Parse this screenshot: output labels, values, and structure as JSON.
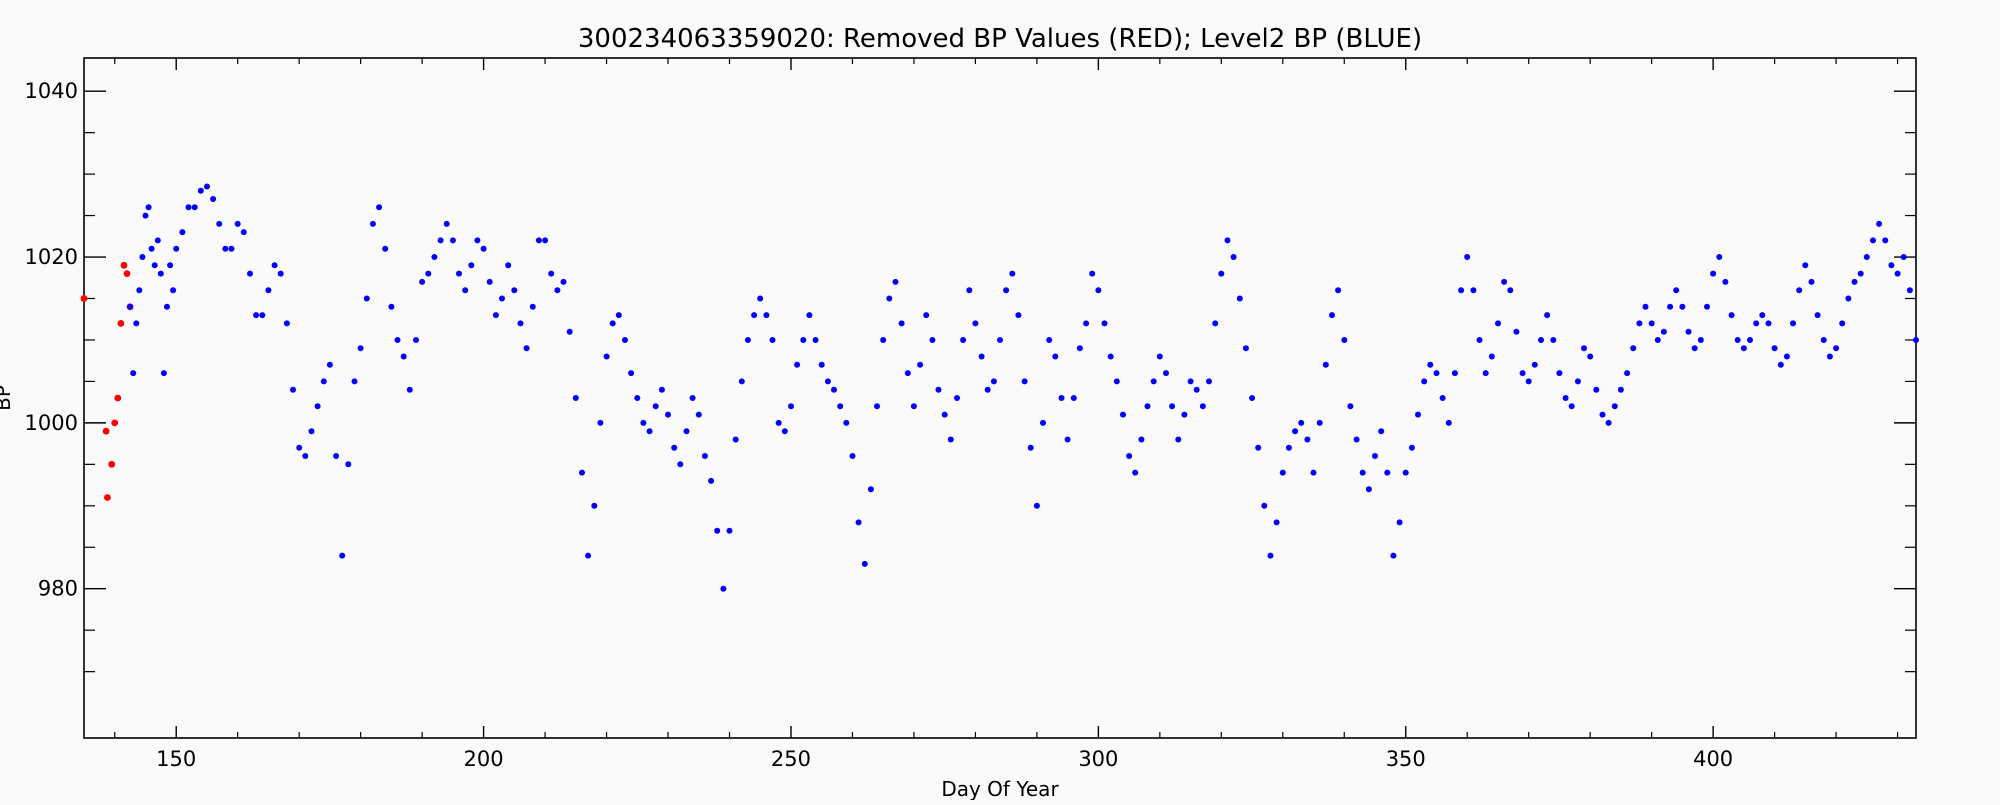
{
  "chart_data": {
    "type": "scatter",
    "title": "300234063359020: Removed BP Values (RED); Level2 BP (BLUE)",
    "xlabel": "Day Of Year",
    "ylabel": "BP",
    "xlim": [
      135,
      433
    ],
    "ylim": [
      962,
      1044
    ],
    "xticks": [
      150,
      200,
      250,
      300,
      350,
      400
    ],
    "yticks": [
      980,
      1000,
      1020,
      1040
    ],
    "grid": false,
    "legend": "none",
    "colors": {
      "removed": "#ff0000",
      "level2": "#0000ff"
    },
    "series": [
      {
        "key": "removed",
        "color": "#ff0000",
        "points": [
          [
            135,
            1015
          ],
          [
            138.6,
            999
          ],
          [
            138.8,
            991
          ],
          [
            139.5,
            995
          ],
          [
            140,
            1000
          ],
          [
            140.5,
            1003
          ],
          [
            141,
            1012
          ],
          [
            141.5,
            1019
          ],
          [
            142,
            1018
          ],
          [
            142.5,
            1014
          ]
        ]
      },
      {
        "key": "level2",
        "color": "#0000ff",
        "points": [
          [
            142.5,
            1014
          ],
          [
            143,
            1006
          ],
          [
            143.5,
            1012
          ],
          [
            144,
            1016
          ],
          [
            144.5,
            1020
          ],
          [
            145,
            1025
          ],
          [
            145.5,
            1026
          ],
          [
            146,
            1021
          ],
          [
            146.5,
            1019
          ],
          [
            147,
            1022
          ],
          [
            147.5,
            1018
          ],
          [
            148,
            1006
          ],
          [
            148.5,
            1014
          ],
          [
            149,
            1019
          ],
          [
            149.5,
            1016
          ],
          [
            150,
            1021
          ],
          [
            151,
            1023
          ],
          [
            152,
            1026
          ],
          [
            153,
            1026
          ],
          [
            154,
            1028
          ],
          [
            155,
            1028.5
          ],
          [
            156,
            1027
          ],
          [
            157,
            1024
          ],
          [
            158,
            1021
          ],
          [
            159,
            1021
          ],
          [
            160,
            1024
          ],
          [
            161,
            1023
          ],
          [
            162,
            1018
          ],
          [
            163,
            1013
          ],
          [
            164,
            1013
          ],
          [
            165,
            1016
          ],
          [
            166,
            1019
          ],
          [
            167,
            1018
          ],
          [
            168,
            1012
          ],
          [
            169,
            1004
          ],
          [
            170,
            997
          ],
          [
            171,
            996
          ],
          [
            172,
            999
          ],
          [
            173,
            1002
          ],
          [
            174,
            1005
          ],
          [
            175,
            1007
          ],
          [
            176,
            996
          ],
          [
            177,
            984
          ],
          [
            178,
            995
          ],
          [
            179,
            1005
          ],
          [
            180,
            1009
          ],
          [
            181,
            1015
          ],
          [
            182,
            1024
          ],
          [
            183,
            1026
          ],
          [
            184,
            1021
          ],
          [
            185,
            1014
          ],
          [
            186,
            1010
          ],
          [
            187,
            1008
          ],
          [
            188,
            1004
          ],
          [
            189,
            1010
          ],
          [
            190,
            1017
          ],
          [
            191,
            1018
          ],
          [
            192,
            1020
          ],
          [
            193,
            1022
          ],
          [
            194,
            1024
          ],
          [
            195,
            1022
          ],
          [
            196,
            1018
          ],
          [
            197,
            1016
          ],
          [
            198,
            1019
          ],
          [
            199,
            1022
          ],
          [
            200,
            1021
          ],
          [
            201,
            1017
          ],
          [
            202,
            1013
          ],
          [
            203,
            1015
          ],
          [
            204,
            1019
          ],
          [
            205,
            1016
          ],
          [
            206,
            1012
          ],
          [
            207,
            1009
          ],
          [
            208,
            1014
          ],
          [
            209,
            1022
          ],
          [
            210,
            1022
          ],
          [
            211,
            1018
          ],
          [
            212,
            1016
          ],
          [
            213,
            1017
          ],
          [
            214,
            1011
          ],
          [
            215,
            1003
          ],
          [
            216,
            994
          ],
          [
            217,
            984
          ],
          [
            218,
            990
          ],
          [
            219,
            1000
          ],
          [
            220,
            1008
          ],
          [
            221,
            1012
          ],
          [
            222,
            1013
          ],
          [
            223,
            1010
          ],
          [
            224,
            1006
          ],
          [
            225,
            1003
          ],
          [
            226,
            1000
          ],
          [
            227,
            999
          ],
          [
            228,
            1002
          ],
          [
            229,
            1004
          ],
          [
            230,
            1001
          ],
          [
            231,
            997
          ],
          [
            232,
            995
          ],
          [
            233,
            999
          ],
          [
            234,
            1003
          ],
          [
            235,
            1001
          ],
          [
            236,
            996
          ],
          [
            237,
            993
          ],
          [
            238,
            987
          ],
          [
            239,
            980
          ],
          [
            240,
            987
          ],
          [
            241,
            998
          ],
          [
            242,
            1005
          ],
          [
            243,
            1010
          ],
          [
            244,
            1013
          ],
          [
            245,
            1015
          ],
          [
            246,
            1013
          ],
          [
            247,
            1010
          ],
          [
            248,
            1000
          ],
          [
            249,
            999
          ],
          [
            250,
            1002
          ],
          [
            251,
            1007
          ],
          [
            252,
            1010
          ],
          [
            253,
            1013
          ],
          [
            254,
            1010
          ],
          [
            255,
            1007
          ],
          [
            256,
            1005
          ],
          [
            257,
            1004
          ],
          [
            258,
            1002
          ],
          [
            259,
            1000
          ],
          [
            260,
            996
          ],
          [
            261,
            988
          ],
          [
            262,
            983
          ],
          [
            263,
            992
          ],
          [
            264,
            1002
          ],
          [
            265,
            1010
          ],
          [
            266,
            1015
          ],
          [
            267,
            1017
          ],
          [
            268,
            1012
          ],
          [
            269,
            1006
          ],
          [
            270,
            1002
          ],
          [
            271,
            1007
          ],
          [
            272,
            1013
          ],
          [
            273,
            1010
          ],
          [
            274,
            1004
          ],
          [
            275,
            1001
          ],
          [
            276,
            998
          ],
          [
            277,
            1003
          ],
          [
            278,
            1010
          ],
          [
            279,
            1016
          ],
          [
            280,
            1012
          ],
          [
            281,
            1008
          ],
          [
            282,
            1004
          ],
          [
            283,
            1005
          ],
          [
            284,
            1010
          ],
          [
            285,
            1016
          ],
          [
            286,
            1018
          ],
          [
            287,
            1013
          ],
          [
            288,
            1005
          ],
          [
            289,
            997
          ],
          [
            290,
            990
          ],
          [
            291,
            1000
          ],
          [
            292,
            1010
          ],
          [
            293,
            1008
          ],
          [
            294,
            1003
          ],
          [
            295,
            998
          ],
          [
            296,
            1003
          ],
          [
            297,
            1009
          ],
          [
            298,
            1012
          ],
          [
            299,
            1018
          ],
          [
            300,
            1016
          ],
          [
            301,
            1012
          ],
          [
            302,
            1008
          ],
          [
            303,
            1005
          ],
          [
            304,
            1001
          ],
          [
            305,
            996
          ],
          [
            306,
            994
          ],
          [
            307,
            998
          ],
          [
            308,
            1002
          ],
          [
            309,
            1005
          ],
          [
            310,
            1008
          ],
          [
            311,
            1006
          ],
          [
            312,
            1002
          ],
          [
            313,
            998
          ],
          [
            314,
            1001
          ],
          [
            315,
            1005
          ],
          [
            316,
            1004
          ],
          [
            317,
            1002
          ],
          [
            318,
            1005
          ],
          [
            319,
            1012
          ],
          [
            320,
            1018
          ],
          [
            321,
            1022
          ],
          [
            322,
            1020
          ],
          [
            323,
            1015
          ],
          [
            324,
            1009
          ],
          [
            325,
            1003
          ],
          [
            326,
            997
          ],
          [
            327,
            990
          ],
          [
            328,
            984
          ],
          [
            329,
            988
          ],
          [
            330,
            994
          ],
          [
            331,
            997
          ],
          [
            332,
            999
          ],
          [
            333,
            1000
          ],
          [
            334,
            998
          ],
          [
            335,
            994
          ],
          [
            336,
            1000
          ],
          [
            337,
            1007
          ],
          [
            338,
            1013
          ],
          [
            339,
            1016
          ],
          [
            340,
            1010
          ],
          [
            341,
            1002
          ],
          [
            342,
            998
          ],
          [
            343,
            994
          ],
          [
            344,
            992
          ],
          [
            345,
            996
          ],
          [
            346,
            999
          ],
          [
            347,
            994
          ],
          [
            348,
            984
          ],
          [
            349,
            988
          ],
          [
            350,
            994
          ],
          [
            351,
            997
          ],
          [
            352,
            1001
          ],
          [
            353,
            1005
          ],
          [
            354,
            1007
          ],
          [
            355,
            1006
          ],
          [
            356,
            1003
          ],
          [
            357,
            1000
          ],
          [
            358,
            1006
          ],
          [
            359,
            1016
          ],
          [
            360,
            1020
          ],
          [
            361,
            1016
          ],
          [
            362,
            1010
          ],
          [
            363,
            1006
          ],
          [
            364,
            1008
          ],
          [
            365,
            1012
          ],
          [
            366,
            1017
          ],
          [
            367,
            1016
          ],
          [
            368,
            1011
          ],
          [
            369,
            1006
          ],
          [
            370,
            1005
          ],
          [
            371,
            1007
          ],
          [
            372,
            1010
          ],
          [
            373,
            1013
          ],
          [
            374,
            1010
          ],
          [
            375,
            1006
          ],
          [
            376,
            1003
          ],
          [
            377,
            1002
          ],
          [
            378,
            1005
          ],
          [
            379,
            1009
          ],
          [
            380,
            1008
          ],
          [
            381,
            1004
          ],
          [
            382,
            1001
          ],
          [
            383,
            1000
          ],
          [
            384,
            1002
          ],
          [
            385,
            1004
          ],
          [
            386,
            1006
          ],
          [
            387,
            1009
          ],
          [
            388,
            1012
          ],
          [
            389,
            1014
          ],
          [
            390,
            1012
          ],
          [
            391,
            1010
          ],
          [
            392,
            1011
          ],
          [
            393,
            1014
          ],
          [
            394,
            1016
          ],
          [
            395,
            1014
          ],
          [
            396,
            1011
          ],
          [
            397,
            1009
          ],
          [
            398,
            1010
          ],
          [
            399,
            1014
          ],
          [
            400,
            1018
          ],
          [
            401,
            1020
          ],
          [
            402,
            1017
          ],
          [
            403,
            1013
          ],
          [
            404,
            1010
          ],
          [
            405,
            1009
          ],
          [
            406,
            1010
          ],
          [
            407,
            1012
          ],
          [
            408,
            1013
          ],
          [
            409,
            1012
          ],
          [
            410,
            1009
          ],
          [
            411,
            1007
          ],
          [
            412,
            1008
          ],
          [
            413,
            1012
          ],
          [
            414,
            1016
          ],
          [
            415,
            1019
          ],
          [
            416,
            1017
          ],
          [
            417,
            1013
          ],
          [
            418,
            1010
          ],
          [
            419,
            1008
          ],
          [
            420,
            1009
          ],
          [
            421,
            1012
          ],
          [
            422,
            1015
          ],
          [
            423,
            1017
          ],
          [
            424,
            1018
          ],
          [
            425,
            1020
          ],
          [
            426,
            1022
          ],
          [
            427,
            1024
          ],
          [
            428,
            1022
          ],
          [
            429,
            1019
          ],
          [
            430,
            1018
          ],
          [
            431,
            1020
          ],
          [
            432,
            1016
          ],
          [
            433,
            1010
          ]
        ]
      }
    ]
  }
}
